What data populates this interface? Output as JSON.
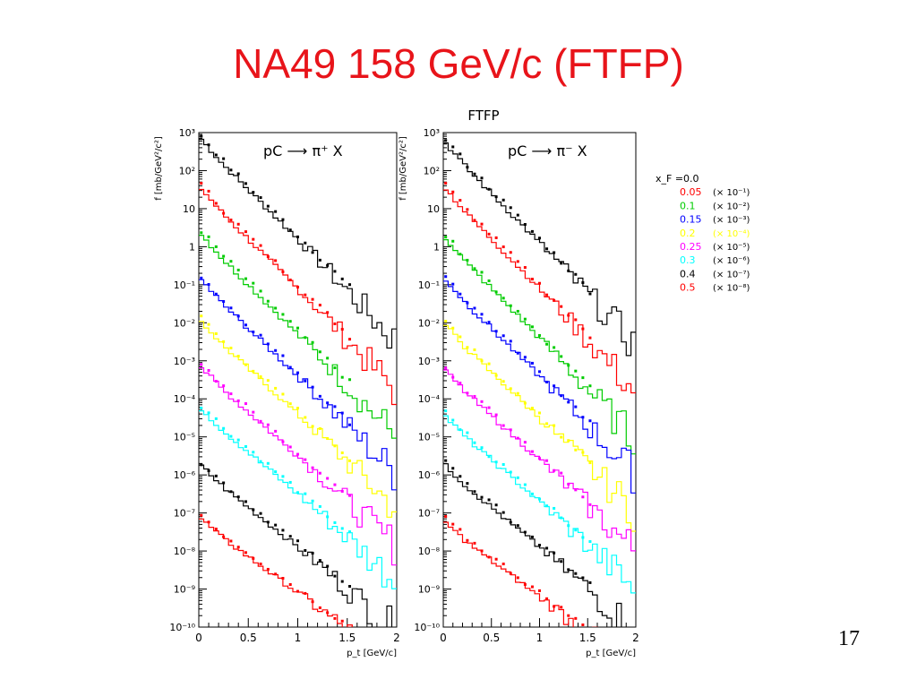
{
  "slide": {
    "title": "NA49 158 GeV/c (FTFP)",
    "page_number": "17"
  },
  "figure": {
    "model_label": "FTFP"
  },
  "legend": {
    "header": "x_F =0.0",
    "entries": [
      {
        "xf": "0.05",
        "scale": "(× 10⁻¹)",
        "color": "#ff0000"
      },
      {
        "xf": "0.1",
        "scale": "(× 10⁻²)",
        "color": "#00cc00"
      },
      {
        "xf": "0.15",
        "scale": "(× 10⁻³)",
        "color": "#0000ff"
      },
      {
        "xf": "0.2",
        "scale": "(× 10⁻⁴)",
        "color": "#ffff00"
      },
      {
        "xf": "0.25",
        "scale": "(× 10⁻⁵)",
        "color": "#ff00ff"
      },
      {
        "xf": "0.3",
        "scale": "(× 10⁻⁶)",
        "color": "#00ffff"
      },
      {
        "xf": "0.4",
        "scale": "(× 10⁻⁷)",
        "color": "#000000"
      },
      {
        "xf": "0.5",
        "scale": "(× 10⁻⁸)",
        "color": "#ff0000"
      }
    ]
  },
  "chart_data": [
    {
      "type": "line",
      "reaction": "pC ⟶  π⁺ X",
      "xlabel": "p_t [GeV/c]",
      "ylabel": "f [mb/GeV²/c²]",
      "xlim": [
        0,
        2
      ],
      "ylim_log10": [
        -10,
        3
      ],
      "log_y": true,
      "xticks": [
        "0",
        "0.5",
        "1",
        "1.5",
        "2"
      ],
      "yticks": [
        "10⁻¹⁰",
        "10⁻⁹",
        "10⁻⁸",
        "10⁻⁷",
        "10⁻⁶",
        "10⁻⁵",
        "10⁻⁴",
        "10⁻³",
        "10⁻²",
        "10⁻¹",
        "1",
        "10",
        "10²",
        "10³"
      ],
      "series": [
        {
          "xf": "0.0",
          "color": "#000000",
          "log10_f_at_pt0": 2.8,
          "slope_decades_per_GeV": 2.6
        },
        {
          "xf": "0.05",
          "color": "#ff0000",
          "log10_f_at_pt0": 1.5,
          "slope_decades_per_GeV": 2.6
        },
        {
          "xf": "0.1",
          "color": "#00cc00",
          "log10_f_at_pt0": 0.3,
          "slope_decades_per_GeV": 2.6
        },
        {
          "xf": "0.15",
          "color": "#0000ff",
          "log10_f_at_pt0": -0.9,
          "slope_decades_per_GeV": 2.5
        },
        {
          "xf": "0.2",
          "color": "#ffff00",
          "log10_f_at_pt0": -2.0,
          "slope_decades_per_GeV": 2.4
        },
        {
          "xf": "0.25",
          "color": "#ff00ff",
          "log10_f_at_pt0": -3.2,
          "slope_decades_per_GeV": 2.3
        },
        {
          "xf": "0.3",
          "color": "#00ffff",
          "log10_f_at_pt0": -4.3,
          "slope_decades_per_GeV": 2.2
        },
        {
          "xf": "0.4",
          "color": "#000000",
          "log10_f_at_pt0": -5.8,
          "slope_decades_per_GeV": 2.1
        },
        {
          "xf": "0.5",
          "color": "#ff0000",
          "log10_f_at_pt0": -7.2,
          "slope_decades_per_GeV": 1.9
        }
      ]
    },
    {
      "type": "line",
      "reaction": "pC ⟶  π⁻ X",
      "xlabel": "p_t [GeV/c]",
      "ylabel": "f [mb/GeV²/c²]",
      "xlim": [
        0,
        2
      ],
      "ylim_log10": [
        -10,
        3
      ],
      "log_y": true,
      "xticks": [
        "0",
        "0.5",
        "1",
        "1.5",
        "2"
      ],
      "yticks": [
        "10⁻¹⁰",
        "10⁻⁹",
        "10⁻⁸",
        "10⁻⁷",
        "10⁻⁶",
        "10⁻⁵",
        "10⁻⁴",
        "10⁻³",
        "10⁻²",
        "10⁻¹",
        "1",
        "10",
        "10²",
        "10³"
      ],
      "series": [
        {
          "xf": "0.0",
          "color": "#000000",
          "log10_f_at_pt0": 2.7,
          "slope_decades_per_GeV": 2.6
        },
        {
          "xf": "0.05",
          "color": "#ff0000",
          "log10_f_at_pt0": 1.5,
          "slope_decades_per_GeV": 2.6
        },
        {
          "xf": "0.1",
          "color": "#00cc00",
          "log10_f_at_pt0": 0.2,
          "slope_decades_per_GeV": 2.6
        },
        {
          "xf": "0.15",
          "color": "#0000ff",
          "log10_f_at_pt0": -0.9,
          "slope_decades_per_GeV": 2.5
        },
        {
          "xf": "0.2",
          "color": "#ffff00",
          "log10_f_at_pt0": -2.1,
          "slope_decades_per_GeV": 2.4
        },
        {
          "xf": "0.25",
          "color": "#ff00ff",
          "log10_f_at_pt0": -3.3,
          "slope_decades_per_GeV": 2.3
        },
        {
          "xf": "0.3",
          "color": "#00ffff",
          "log10_f_at_pt0": -4.5,
          "slope_decades_per_GeV": 2.2
        },
        {
          "xf": "0.4",
          "color": "#000000",
          "log10_f_at_pt0": -5.8,
          "slope_decades_per_GeV": 2.1
        },
        {
          "xf": "0.5",
          "color": "#ff0000",
          "log10_f_at_pt0": -7.3,
          "slope_decades_per_GeV": 1.9
        }
      ]
    }
  ]
}
